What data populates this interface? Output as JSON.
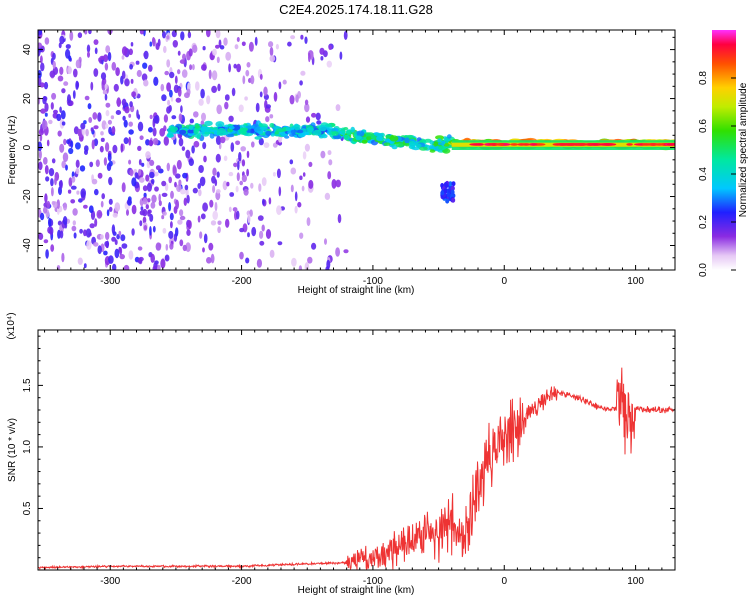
{
  "title": "C2E4.2025.174.18.11.G28",
  "chart_data": [
    {
      "type": "heatmap",
      "xlabel": "Height of straight line (km)",
      "ylabel": "Frequency (Hz)",
      "xlim": [
        -355,
        130
      ],
      "ylim": [
        -50,
        48
      ],
      "xticks": [
        -300,
        -200,
        -100,
        0,
        100
      ],
      "yticks": [
        -40,
        -20,
        0,
        20,
        40
      ],
      "colorbar": {
        "label": "Normalized spectral amplitude",
        "range": [
          0,
          1
        ],
        "ticks": [
          0.0,
          0.2,
          0.4,
          0.6,
          0.8
        ]
      },
      "features": [
        {
          "x_range": [
            -355,
            -120
          ],
          "freq_range": [
            -50,
            48
          ],
          "amplitude": 0.12
        },
        {
          "x_range": [
            -255,
            -130
          ],
          "freq_center": 7,
          "amplitude": 0.35
        },
        {
          "x_range": [
            -130,
            -60
          ],
          "freq_center": 2,
          "amplitude": 0.4
        },
        {
          "x_range": [
            -60,
            -40
          ],
          "freq_center": -15,
          "amplitude": 0.2
        },
        {
          "x_range": [
            -40,
            130
          ],
          "freq_center": 1,
          "amplitude": 0.8
        }
      ]
    },
    {
      "type": "line",
      "xlabel": "Height of straight line (km)",
      "ylabel": "SNR (10 * v/v)",
      "y_exponent_label": "(x10⁴)",
      "xlim": [
        -355,
        130
      ],
      "ylim": [
        0,
        1.95
      ],
      "xticks": [
        -300,
        -200,
        -100,
        0,
        100
      ],
      "yticks": [
        0.5,
        1.0,
        1.5
      ],
      "series_color": "#ee3333",
      "x": [
        -355,
        -300,
        -250,
        -200,
        -150,
        -120,
        -100,
        -80,
        -60,
        -40,
        -30,
        -20,
        -10,
        0,
        10,
        20,
        30,
        40,
        50,
        60,
        70,
        80,
        90,
        95,
        100,
        110,
        120,
        130
      ],
      "y": [
        0.02,
        0.03,
        0.03,
        0.03,
        0.05,
        0.06,
        0.1,
        0.2,
        0.3,
        0.35,
        0.2,
        0.7,
        0.95,
        1.05,
        1.2,
        1.3,
        1.38,
        1.45,
        1.42,
        1.38,
        1.33,
        1.3,
        1.35,
        1.2,
        1.32,
        1.3,
        1.3,
        1.3
      ]
    }
  ]
}
